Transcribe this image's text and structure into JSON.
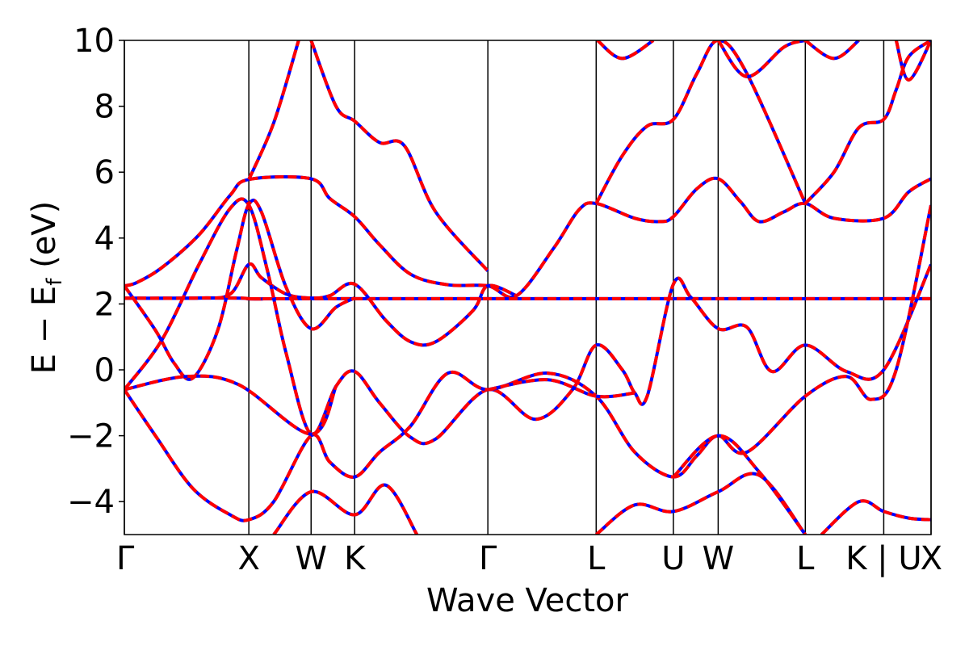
{
  "chart_data": {
    "type": "line",
    "title": "",
    "xlabel": "Wave Vector",
    "ylabel_parts": [
      "E − E",
      "f",
      " (eV)"
    ],
    "ylim": [
      -5,
      10
    ],
    "yticks": [
      -4,
      -2,
      0,
      2,
      4,
      6,
      8,
      10
    ],
    "ytick_labels": [
      "−4",
      "−2",
      "0",
      "2",
      "4",
      "6",
      "8",
      "10"
    ],
    "xlim": [
      0,
      6.48
    ],
    "kpoints": [
      {
        "label": "Γ",
        "x": 0.0
      },
      {
        "label": "X",
        "x": 1.0
      },
      {
        "label": "W",
        "x": 1.5
      },
      {
        "label": "K",
        "x": 1.85
      },
      {
        "label": "Γ",
        "x": 2.92
      },
      {
        "label": "L",
        "x": 3.79
      },
      {
        "label": "U",
        "x": 4.41
      },
      {
        "label": "W",
        "x": 4.77
      },
      {
        "label": "L",
        "x": 5.47
      },
      {
        "label": "K | U",
        "x": 6.1
      },
      {
        "label": "X",
        "x": 6.48
      }
    ],
    "grid": false,
    "legend": "none",
    "colors": {
      "series_a": "#0000ff",
      "series_b": "#ff0000"
    },
    "series": [
      {
        "style": "solid blue underlay, dashed red overlay",
        "points": [
          [
            0.0,
            2.55
          ],
          [
            0.1,
            2.65
          ],
          [
            0.3,
            3.1
          ],
          [
            0.6,
            4.1
          ],
          [
            0.85,
            5.3
          ],
          [
            1.0,
            5.78
          ],
          [
            1.5,
            5.8
          ],
          [
            1.65,
            5.2
          ],
          [
            1.85,
            4.65
          ],
          [
            2.05,
            3.8
          ],
          [
            2.3,
            2.9
          ],
          [
            2.6,
            2.58
          ],
          [
            2.92,
            2.55
          ],
          [
            3.15,
            2.25
          ],
          [
            3.45,
            3.7
          ],
          [
            3.65,
            4.85
          ],
          [
            3.79,
            5.05
          ],
          [
            4.1,
            4.6
          ],
          [
            4.3,
            4.5
          ],
          [
            4.41,
            4.65
          ],
          [
            4.6,
            5.5
          ],
          [
            4.77,
            5.8
          ],
          [
            4.95,
            5.1
          ],
          [
            5.1,
            4.5
          ],
          [
            5.3,
            4.8
          ],
          [
            5.47,
            5.05
          ],
          [
            5.7,
            4.6
          ],
          [
            6.1,
            4.6
          ],
          [
            6.3,
            5.4
          ],
          [
            6.48,
            5.8
          ]
        ]
      },
      {
        "points": [
          [
            0.0,
            2.17
          ],
          [
            0.85,
            2.18
          ],
          [
            1.0,
            2.16
          ],
          [
            1.1,
            2.15
          ],
          [
            1.5,
            2.16
          ],
          [
            6.48,
            2.16
          ]
        ]
      },
      {
        "points": [
          [
            0.0,
            2.18
          ],
          [
            0.6,
            2.18
          ],
          [
            0.85,
            2.3
          ],
          [
            1.0,
            3.2
          ],
          [
            1.1,
            2.8
          ],
          [
            1.3,
            2.3
          ],
          [
            1.5,
            2.18
          ],
          [
            1.65,
            2.25
          ],
          [
            1.85,
            2.6
          ],
          [
            2.1,
            1.5
          ],
          [
            2.3,
            0.85
          ],
          [
            2.5,
            0.85
          ],
          [
            2.8,
            1.8
          ],
          [
            2.92,
            2.55
          ],
          [
            3.15,
            2.25
          ]
        ]
      },
      {
        "points": [
          [
            0.0,
            2.55
          ],
          [
            0.25,
            1.2
          ],
          [
            0.4,
            0.2
          ],
          [
            0.55,
            -0.25
          ],
          [
            0.75,
            1.2
          ],
          [
            0.9,
            3.6
          ],
          [
            1.0,
            5.02
          ],
          [
            1.1,
            4.8
          ],
          [
            1.3,
            2.5
          ],
          [
            1.5,
            1.25
          ],
          [
            1.7,
            1.9
          ],
          [
            1.85,
            2.18
          ]
        ]
      },
      {
        "points": [
          [
            0.0,
            -0.6
          ],
          [
            0.3,
            0.9
          ],
          [
            0.6,
            3.2
          ],
          [
            0.85,
            4.9
          ],
          [
            1.0,
            5.0
          ],
          [
            1.15,
            3.0
          ],
          [
            1.3,
            0.5
          ],
          [
            1.5,
            -1.95
          ],
          [
            1.7,
            -0.5
          ],
          [
            1.85,
            -0.05
          ],
          [
            2.05,
            -1.0
          ],
          [
            2.3,
            -2.05
          ],
          [
            2.5,
            -2.1
          ],
          [
            2.92,
            -0.6
          ],
          [
            3.3,
            -1.5
          ],
          [
            3.6,
            -0.6
          ],
          [
            3.79,
            0.75
          ],
          [
            4.0,
            0.0
          ],
          [
            4.1,
            -0.7
          ],
          [
            4.2,
            -0.8
          ],
          [
            4.41,
            2.6
          ],
          [
            4.55,
            2.2
          ],
          [
            4.77,
            1.25
          ],
          [
            5.0,
            1.3
          ],
          [
            5.2,
            -0.05
          ],
          [
            5.47,
            0.75
          ],
          [
            5.8,
            -0.05
          ],
          [
            6.1,
            0.0
          ],
          [
            6.48,
            3.2
          ]
        ]
      },
      {
        "points": [
          [
            0.0,
            -0.6
          ],
          [
            0.25,
            -2.0
          ],
          [
            0.55,
            -3.6
          ],
          [
            0.85,
            -4.4
          ],
          [
            1.0,
            -4.55
          ],
          [
            1.2,
            -4.0
          ],
          [
            1.5,
            -2.0
          ],
          [
            1.65,
            -2.8
          ],
          [
            1.85,
            -3.25
          ],
          [
            2.05,
            -2.5
          ],
          [
            2.3,
            -1.7
          ],
          [
            2.6,
            -0.1
          ],
          [
            2.92,
            -0.6
          ],
          [
            3.4,
            -0.1
          ],
          [
            3.79,
            -0.8
          ],
          [
            4.1,
            -2.5
          ],
          [
            4.41,
            -3.25
          ],
          [
            4.6,
            -2.6
          ],
          [
            4.77,
            -2.0
          ],
          [
            5.0,
            -2.5
          ],
          [
            5.47,
            -0.8
          ],
          [
            5.8,
            -0.2
          ],
          [
            6.0,
            -0.9
          ],
          [
            6.2,
            0.0
          ],
          [
            6.48,
            5.0
          ]
        ]
      },
      {
        "points": [
          [
            0.0,
            -0.6
          ],
          [
            0.5,
            -0.2
          ],
          [
            0.92,
            -0.45
          ],
          [
            1.5,
            -1.95
          ],
          [
            1.7,
            -0.5
          ]
        ]
      },
      {
        "points": [
          [
            2.92,
            -0.6
          ],
          [
            3.4,
            -0.3
          ],
          [
            3.79,
            -0.8
          ],
          [
            4.1,
            -0.7
          ]
        ]
      },
      {
        "points": [
          [
            1.2,
            -5.0
          ],
          [
            1.5,
            -3.7
          ],
          [
            1.85,
            -4.4
          ],
          [
            2.1,
            -3.5
          ],
          [
            2.35,
            -5.0
          ]
        ]
      },
      {
        "points": [
          [
            1.5,
            10.0
          ],
          [
            1.7,
            8.0
          ],
          [
            1.85,
            7.55
          ],
          [
            2.05,
            6.9
          ],
          [
            2.25,
            6.8
          ],
          [
            2.5,
            4.8
          ],
          [
            2.92,
            3.0
          ]
        ]
      },
      {
        "points": [
          [
            1.0,
            5.78
          ],
          [
            1.2,
            7.5
          ],
          [
            1.4,
            10.0
          ]
        ]
      },
      {
        "points": [
          [
            3.79,
            5.05
          ],
          [
            4.0,
            6.5
          ],
          [
            4.2,
            7.4
          ],
          [
            4.41,
            7.6
          ],
          [
            4.6,
            9.0
          ],
          [
            4.77,
            10.0
          ],
          [
            5.0,
            9.0
          ],
          [
            5.47,
            5.05
          ]
        ]
      },
      {
        "points": [
          [
            4.77,
            10.0
          ],
          [
            5.0,
            8.9
          ],
          [
            5.3,
            9.8
          ],
          [
            5.47,
            10.0
          ]
        ]
      },
      {
        "points": [
          [
            5.47,
            10.0
          ],
          [
            5.7,
            9.45
          ],
          [
            5.9,
            10.0
          ]
        ]
      },
      {
        "points": [
          [
            3.8,
            10.0
          ],
          [
            4.0,
            9.45
          ],
          [
            4.25,
            10.0
          ]
        ]
      },
      {
        "points": [
          [
            5.47,
            5.05
          ],
          [
            5.7,
            6.0
          ],
          [
            5.9,
            7.35
          ],
          [
            6.1,
            7.6
          ],
          [
            6.2,
            8.5
          ],
          [
            6.3,
            9.5
          ],
          [
            6.48,
            10.0
          ]
        ]
      },
      {
        "points": [
          [
            6.2,
            10.0
          ],
          [
            6.3,
            8.8
          ],
          [
            6.48,
            10.0
          ]
        ]
      },
      {
        "points": [
          [
            3.79,
            -5.0
          ],
          [
            4.1,
            -4.1
          ],
          [
            4.41,
            -4.3
          ],
          [
            4.77,
            -3.7
          ],
          [
            5.1,
            -3.2
          ],
          [
            5.47,
            -5.0
          ]
        ]
      },
      {
        "points": [
          [
            5.6,
            -5.0
          ],
          [
            5.9,
            -4.0
          ],
          [
            6.1,
            -4.3
          ],
          [
            6.3,
            -4.5
          ],
          [
            6.48,
            -4.55
          ]
        ]
      },
      {
        "points": [
          [
            4.41,
            -3.25
          ],
          [
            4.77,
            -2.0
          ],
          [
            5.1,
            -3.1
          ],
          [
            5.47,
            -5.0
          ]
        ]
      }
    ]
  }
}
